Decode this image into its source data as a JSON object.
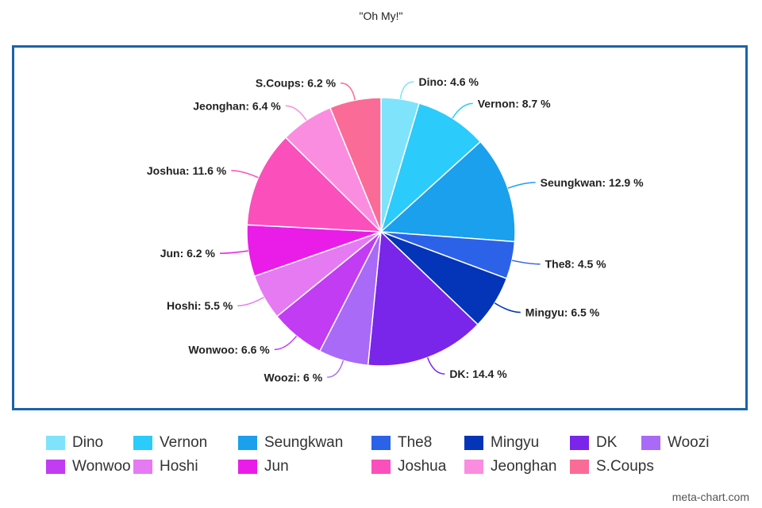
{
  "chart_data": {
    "type": "pie",
    "title": "\"Oh My!\"",
    "slices": [
      {
        "name": "Dino",
        "value": 4.6,
        "label": "Dino: 4.6 %",
        "color": "#7fe3fb"
      },
      {
        "name": "Vernon",
        "value": 8.7,
        "label": "Vernon: 8.7 %",
        "color": "#2bcbfb"
      },
      {
        "name": "Seungkwan",
        "value": 12.9,
        "label": "Seungkwan: 12.9 %",
        "color": "#1aa0ec"
      },
      {
        "name": "The8",
        "value": 4.5,
        "label": "The8: 4.5 %",
        "color": "#2b62e8"
      },
      {
        "name": "Mingyu",
        "value": 6.5,
        "label": "Mingyu: 6.5 %",
        "color": "#0434b8"
      },
      {
        "name": "DK",
        "value": 14.4,
        "label": "DK: 14.4 %",
        "color": "#7a25ea"
      },
      {
        "name": "Woozi",
        "value": 6.0,
        "label": "Woozi: 6 %",
        "color": "#a96af7"
      },
      {
        "name": "Wonwoo",
        "value": 6.6,
        "label": "Wonwoo: 6.6 %",
        "color": "#c23cf3"
      },
      {
        "name": "Hoshi",
        "value": 5.5,
        "label": "Hoshi: 5.5 %",
        "color": "#e57af3"
      },
      {
        "name": "Jun",
        "value": 6.2,
        "label": "Jun: 6.2 %",
        "color": "#ea1ce8"
      },
      {
        "name": "Joshua",
        "value": 11.6,
        "label": "Joshua: 11.6 %",
        "color": "#fb4fbc"
      },
      {
        "name": "Jeonghan",
        "value": 6.4,
        "label": "Jeonghan: 6.4 %",
        "color": "#fb8de0"
      },
      {
        "name": "S.Coups",
        "value": 6.2,
        "label": "S.Coups: 6.2 %",
        "color": "#fb6b97"
      }
    ],
    "legend_position": "bottom",
    "frame_color": "#1c63a8"
  },
  "credit": "meta-chart.com"
}
